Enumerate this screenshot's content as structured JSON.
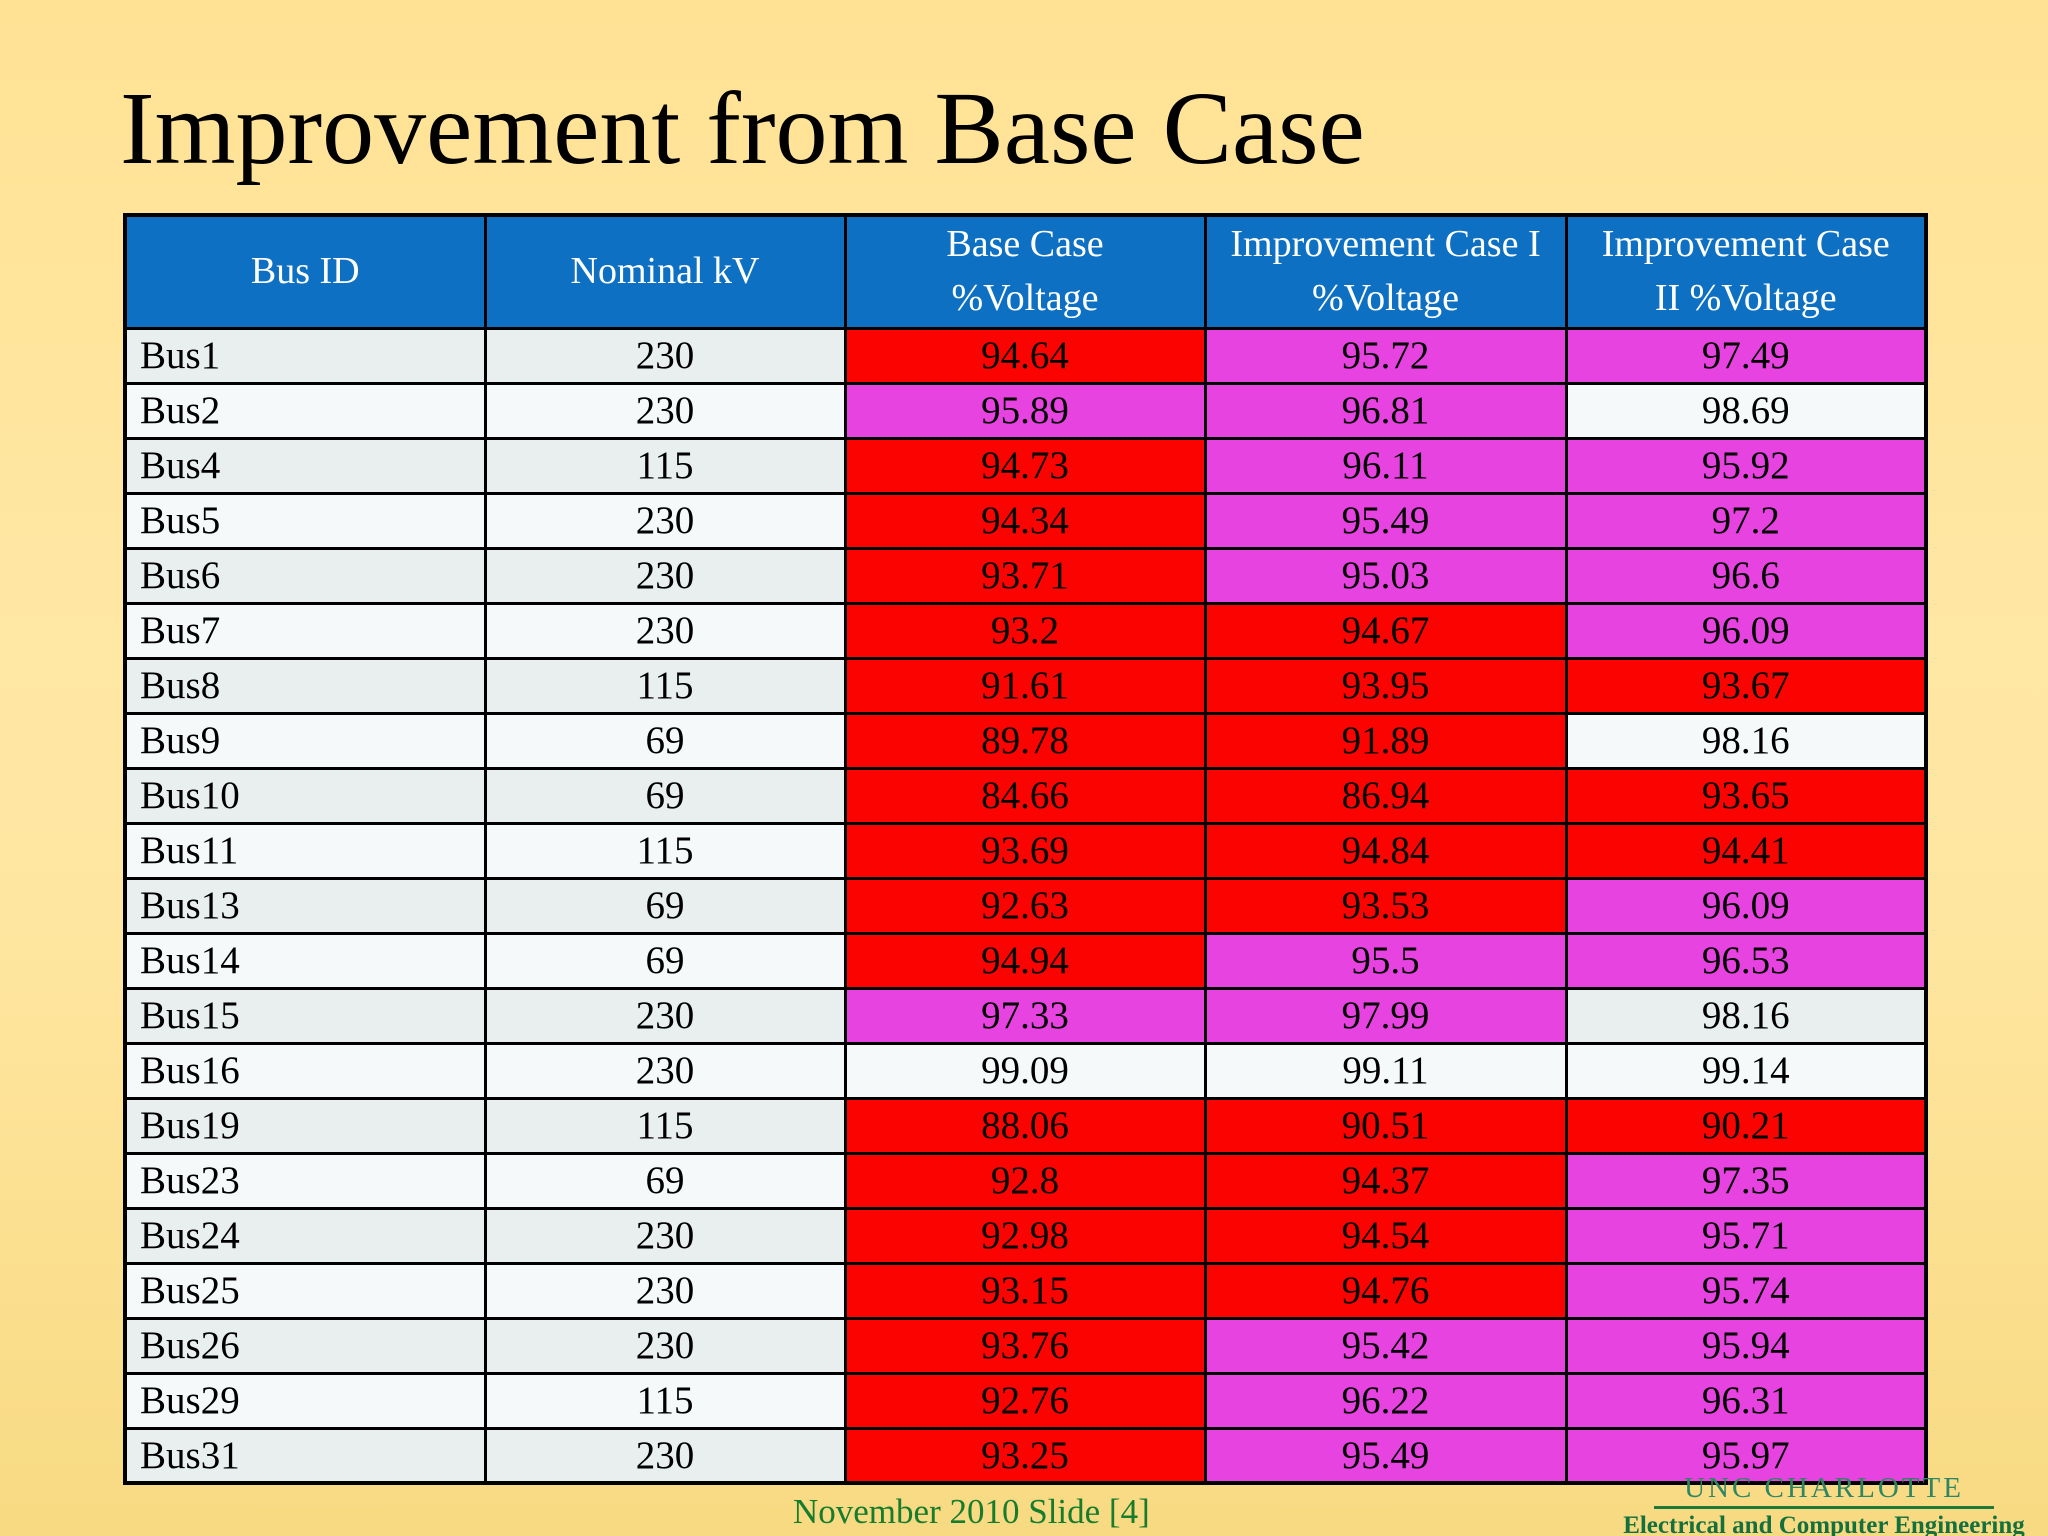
{
  "slide": {
    "title": "Improvement from Base Case",
    "footer": {
      "text": "November 2010 Slide [4]"
    },
    "logo": {
      "line1": "UNC CHARLOTTE",
      "line2": "Electrical and Computer Engineering"
    }
  },
  "colors": {
    "header_bg": "#0e70c2",
    "red": "#fa0300",
    "magenta": "#e743e0",
    "band_dark": "#e9eeef",
    "band_light": "#f5f9fa",
    "green": "#177d2c",
    "logo_green": "#2e8663",
    "logo_dark_green": "#14713e",
    "background_top": "#ffe294",
    "background_bottom": "#f8da82",
    "border": "#000000"
  },
  "table": {
    "columns": [
      "Bus ID",
      "Nominal kV",
      "Base Case\n%Voltage",
      "Improvement Case I\n%Voltage",
      "Improvement Case\nII %Voltage"
    ],
    "rows": [
      {
        "bus": "Bus1",
        "kv": "230",
        "base": "94.64",
        "base_status": "red",
        "imp1": "95.72",
        "imp1_status": "magenta",
        "imp2": "97.49",
        "imp2_status": "magenta"
      },
      {
        "bus": "Bus2",
        "kv": "230",
        "base": "95.89",
        "base_status": "magenta",
        "imp1": "96.81",
        "imp1_status": "magenta",
        "imp2": "98.69",
        "imp2_status": "normal"
      },
      {
        "bus": "Bus4",
        "kv": "115",
        "base": "94.73",
        "base_status": "red",
        "imp1": "96.11",
        "imp1_status": "magenta",
        "imp2": "95.92",
        "imp2_status": "magenta"
      },
      {
        "bus": "Bus5",
        "kv": "230",
        "base": "94.34",
        "base_status": "red",
        "imp1": "95.49",
        "imp1_status": "magenta",
        "imp2": "97.2",
        "imp2_status": "magenta"
      },
      {
        "bus": "Bus6",
        "kv": "230",
        "base": "93.71",
        "base_status": "red",
        "imp1": "95.03",
        "imp1_status": "magenta",
        "imp2": "96.6",
        "imp2_status": "magenta"
      },
      {
        "bus": "Bus7",
        "kv": "230",
        "base": "93.2",
        "base_status": "red",
        "imp1": "94.67",
        "imp1_status": "red",
        "imp2": "96.09",
        "imp2_status": "magenta"
      },
      {
        "bus": "Bus8",
        "kv": "115",
        "base": "91.61",
        "base_status": "red",
        "imp1": "93.95",
        "imp1_status": "red",
        "imp2": "93.67",
        "imp2_status": "red"
      },
      {
        "bus": "Bus9",
        "kv": "69",
        "base": "89.78",
        "base_status": "red",
        "imp1": "91.89",
        "imp1_status": "red",
        "imp2": "98.16",
        "imp2_status": "normal"
      },
      {
        "bus": "Bus10",
        "kv": "69",
        "base": "84.66",
        "base_status": "red",
        "imp1": "86.94",
        "imp1_status": "red",
        "imp2": "93.65",
        "imp2_status": "red"
      },
      {
        "bus": "Bus11",
        "kv": "115",
        "base": "93.69",
        "base_status": "red",
        "imp1": "94.84",
        "imp1_status": "red",
        "imp2": "94.41",
        "imp2_status": "red"
      },
      {
        "bus": "Bus13",
        "kv": "69",
        "base": "92.63",
        "base_status": "red",
        "imp1": "93.53",
        "imp1_status": "red",
        "imp2": "96.09",
        "imp2_status": "magenta"
      },
      {
        "bus": "Bus14",
        "kv": "69",
        "base": "94.94",
        "base_status": "red",
        "imp1": "95.5",
        "imp1_status": "magenta",
        "imp2": "96.53",
        "imp2_status": "magenta"
      },
      {
        "bus": "Bus15",
        "kv": "230",
        "base": "97.33",
        "base_status": "magenta",
        "imp1": "97.99",
        "imp1_status": "magenta",
        "imp2": "98.16",
        "imp2_status": "normal"
      },
      {
        "bus": "Bus16",
        "kv": "230",
        "base": "99.09",
        "base_status": "normal",
        "imp1": "99.11",
        "imp1_status": "normal",
        "imp2": "99.14",
        "imp2_status": "normal"
      },
      {
        "bus": "Bus19",
        "kv": "115",
        "base": "88.06",
        "base_status": "red",
        "imp1": "90.51",
        "imp1_status": "red",
        "imp2": "90.21",
        "imp2_status": "red"
      },
      {
        "bus": "Bus23",
        "kv": "69",
        "base": "92.8",
        "base_status": "red",
        "imp1": "94.37",
        "imp1_status": "red",
        "imp2": "97.35",
        "imp2_status": "magenta"
      },
      {
        "bus": "Bus24",
        "kv": "230",
        "base": "92.98",
        "base_status": "red",
        "imp1": "94.54",
        "imp1_status": "red",
        "imp2": "95.71",
        "imp2_status": "magenta"
      },
      {
        "bus": "Bus25",
        "kv": "230",
        "base": "93.15",
        "base_status": "red",
        "imp1": "94.76",
        "imp1_status": "red",
        "imp2": "95.74",
        "imp2_status": "magenta"
      },
      {
        "bus": "Bus26",
        "kv": "230",
        "base": "93.76",
        "base_status": "red",
        "imp1": "95.42",
        "imp1_status": "magenta",
        "imp2": "95.94",
        "imp2_status": "magenta"
      },
      {
        "bus": "Bus29",
        "kv": "115",
        "base": "92.76",
        "base_status": "red",
        "imp1": "96.22",
        "imp1_status": "magenta",
        "imp2": "96.31",
        "imp2_status": "magenta"
      },
      {
        "bus": "Bus31",
        "kv": "230",
        "base": "93.25",
        "base_status": "red",
        "imp1": "95.49",
        "imp1_status": "magenta",
        "imp2": "95.97",
        "imp2_status": "magenta"
      }
    ]
  }
}
